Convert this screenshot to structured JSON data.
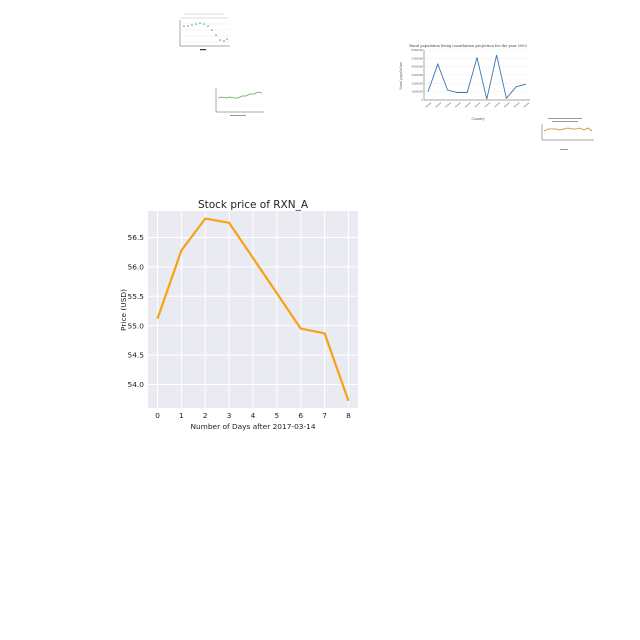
{
  "chart_data": [
    {
      "type": "line",
      "title": "Stock price of RXN_A",
      "xlabel": "Number of Days after 2017-03-14",
      "ylabel": "Price (USD)",
      "x": [
        0,
        1,
        2,
        3,
        4,
        5,
        6,
        7,
        8
      ],
      "series": [
        {
          "name": "",
          "values": [
            55.12,
            56.28,
            56.82,
            56.75,
            56.15,
            55.55,
            54.95,
            54.87,
            53.72
          ]
        }
      ],
      "xlim": [
        -0.4,
        8.4
      ],
      "ylim": [
        53.6,
        56.95
      ],
      "xticks": [
        0,
        1,
        2,
        3,
        4,
        5,
        6,
        7,
        8
      ],
      "yticks": [
        54.0,
        54.5,
        55.0,
        55.5,
        56.0,
        56.5
      ],
      "grid": true,
      "colors": {
        "line": "#f5a214",
        "plot_bg": "#eaeaf2",
        "grid": "#ffffff"
      }
    },
    {
      "type": "line",
      "title": "Rural population living conurbation projection for the year 2050",
      "xlabel": "Country",
      "ylabel": "Rural population",
      "x": [
        0,
        1,
        2,
        3,
        4,
        5,
        6,
        7,
        8,
        9,
        10
      ],
      "series": [
        {
          "name": "",
          "values": [
            1000000,
            4300000,
            1200000,
            900000,
            900000,
            5100000,
            100000,
            5400000,
            200000,
            1600000,
            1900000
          ]
        }
      ],
      "ylim": [
        0,
        6000000
      ],
      "yticks": [
        "0",
        "1000000",
        "2000000",
        "3000000",
        "4000000",
        "5000000",
        "6000000"
      ],
      "grid": true,
      "colors": {
        "line": "#3a75b0"
      }
    }
  ]
}
